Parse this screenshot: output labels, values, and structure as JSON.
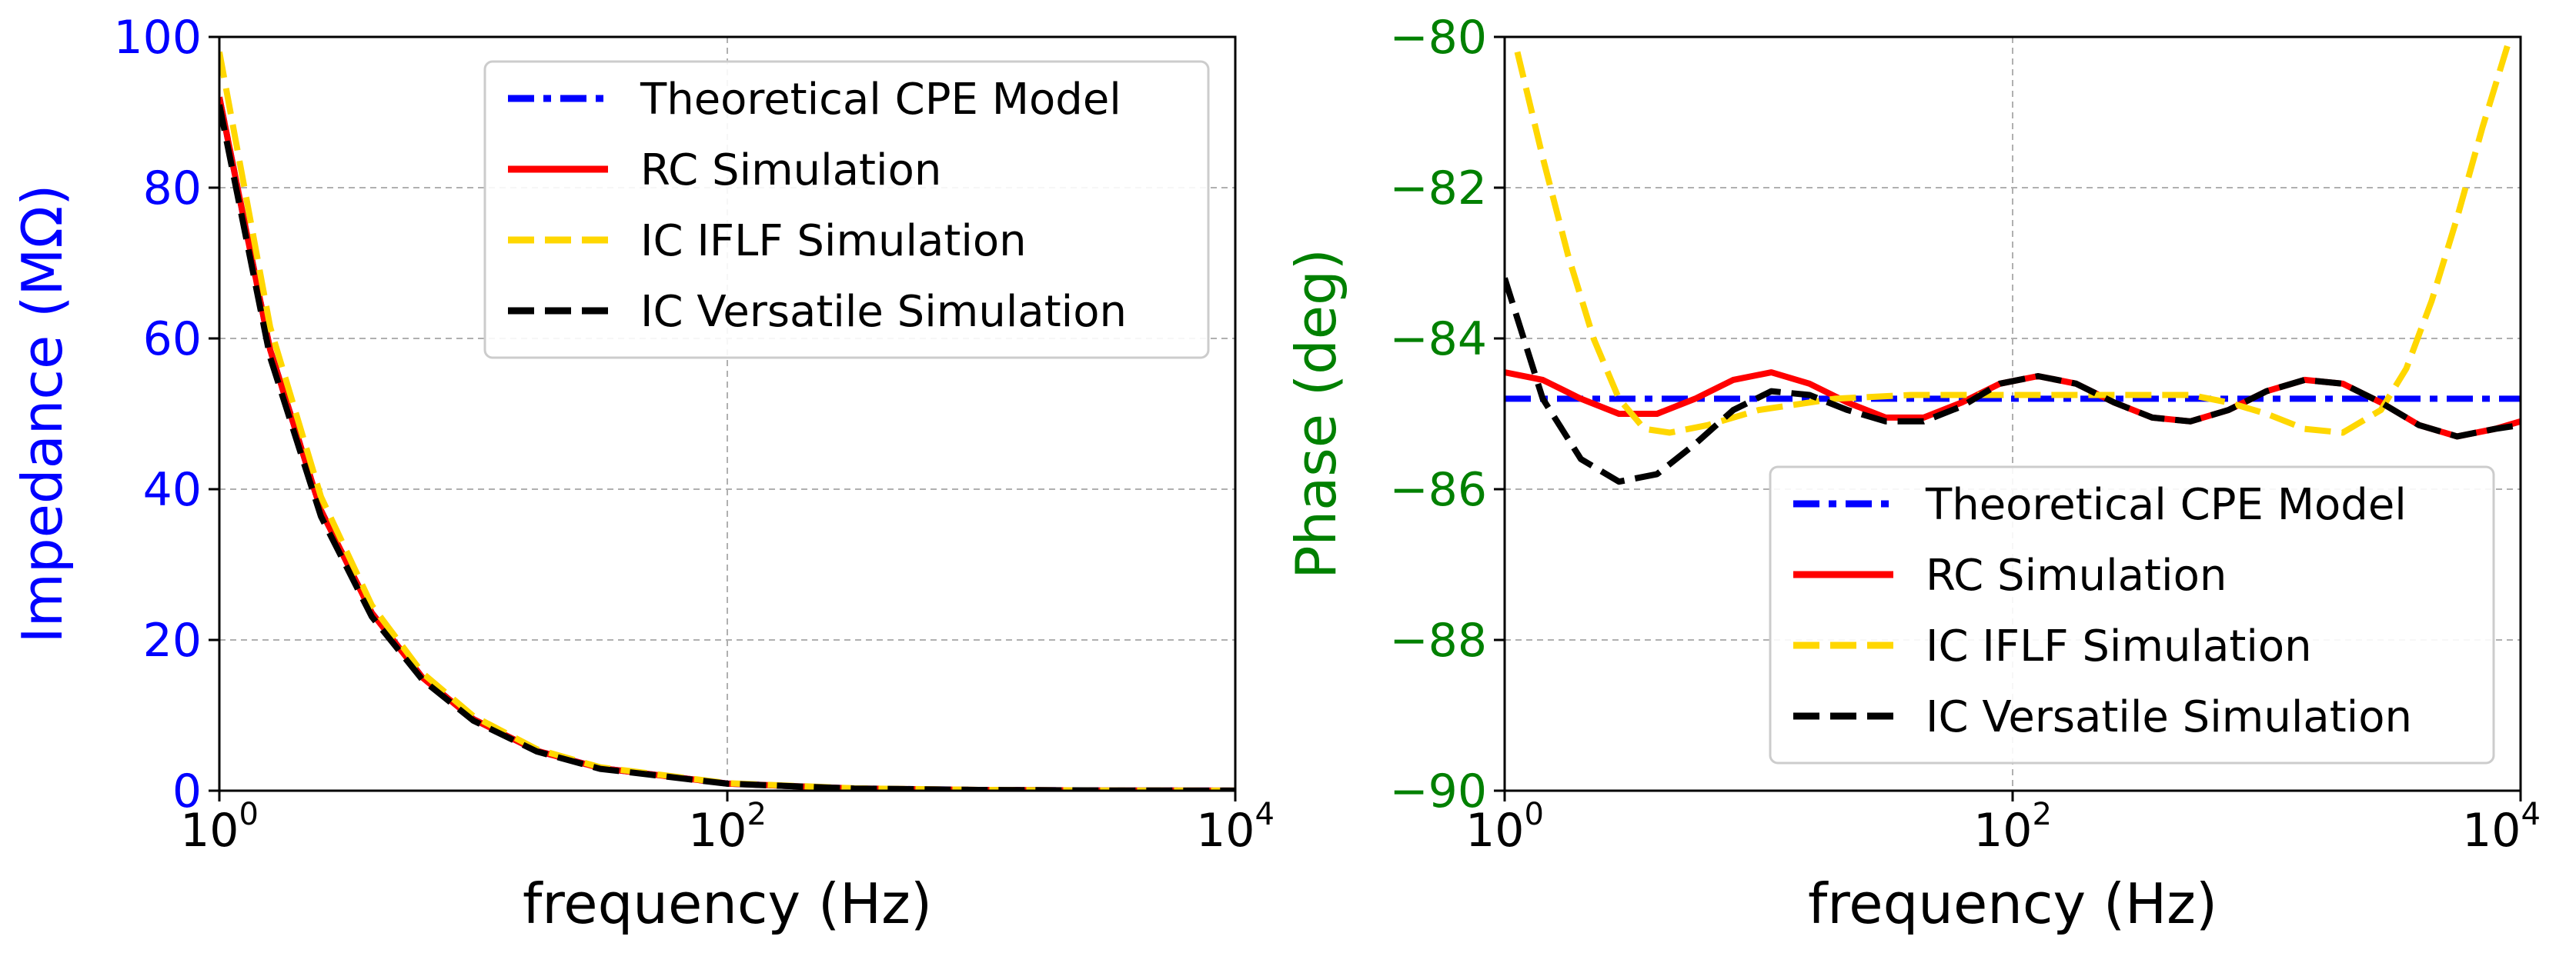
{
  "chart_data": [
    {
      "type": "line",
      "xscale": "log10",
      "xlim_log10": [
        0,
        4
      ],
      "ylim": [
        0,
        100
      ],
      "xlabel": "frequency (Hz)",
      "ylabel": "Impedance (MΩ)",
      "ylabel_color": "#0000ff",
      "x_ticks": [
        {
          "base": "10",
          "exp": "0"
        },
        {
          "base": "10",
          "exp": "2"
        },
        {
          "base": "10",
          "exp": "4"
        }
      ],
      "y_ticks": [
        "0",
        "20",
        "40",
        "60",
        "80",
        "100"
      ],
      "y_tick_values": [
        0,
        20,
        40,
        60,
        80,
        100
      ],
      "grid": true,
      "legend_loc": "upper-right",
      "series": [
        {
          "name": "Theoretical CPE Model",
          "color": "#0000ff",
          "style": "dashdot",
          "log10_x": [
            0,
            0.2,
            0.4,
            0.6,
            0.8,
            1.0,
            1.25,
            1.5,
            2.0,
            2.5,
            3.0,
            3.5,
            4.0
          ],
          "y": [
            92,
            58.5,
            37.2,
            23.6,
            15.0,
            9.5,
            5.3,
            3.0,
            0.95,
            0.3,
            0.1,
            0.03,
            0.01
          ]
        },
        {
          "name": "RC Simulation",
          "color": "#ff0000",
          "style": "solid",
          "log10_x": [
            0,
            0.2,
            0.4,
            0.6,
            0.8,
            1.0,
            1.25,
            1.5,
            2.0,
            2.5,
            3.0,
            3.5,
            4.0
          ],
          "y": [
            92,
            58.5,
            37.2,
            23.6,
            15.0,
            9.5,
            5.3,
            3.0,
            0.95,
            0.3,
            0.1,
            0.03,
            0.01
          ]
        },
        {
          "name": "IC IFLF Simulation",
          "color": "#ffd700",
          "style": "dashed",
          "log10_x": [
            0,
            0.2,
            0.4,
            0.6,
            0.8,
            1.0,
            1.25,
            1.5,
            2.0,
            2.5,
            3.0,
            3.5,
            4.0
          ],
          "y": [
            98,
            61.5,
            39.0,
            24.6,
            15.6,
            9.9,
            5.5,
            3.1,
            1.0,
            0.32,
            0.1,
            0.03,
            0.01
          ]
        },
        {
          "name": "IC Versatile Simulation",
          "color": "#000000",
          "style": "dashed",
          "log10_x": [
            0,
            0.2,
            0.4,
            0.6,
            0.8,
            1.0,
            1.25,
            1.5,
            2.0,
            2.5,
            3.0,
            3.5,
            4.0
          ],
          "y": [
            91,
            57.5,
            36.4,
            23.1,
            14.7,
            9.3,
            5.2,
            2.9,
            0.93,
            0.29,
            0.1,
            0.03,
            0.01
          ]
        }
      ]
    },
    {
      "type": "line",
      "xscale": "log10",
      "xlim_log10": [
        0,
        4
      ],
      "ylim": [
        -90,
        -80
      ],
      "xlabel": "frequency (Hz)",
      "ylabel": "Phase (deg)",
      "ylabel_color": "#008000",
      "x_ticks": [
        {
          "base": "10",
          "exp": "0"
        },
        {
          "base": "10",
          "exp": "2"
        },
        {
          "base": "10",
          "exp": "4"
        }
      ],
      "y_ticks": [
        "−90",
        "−88",
        "−86",
        "−84",
        "−82",
        "−80"
      ],
      "y_tick_values": [
        -90,
        -88,
        -86,
        -84,
        -82,
        -80
      ],
      "grid": true,
      "legend_loc": "lower-right",
      "series": [
        {
          "name": "Theoretical CPE Model",
          "color": "#0000ff",
          "style": "dashdot",
          "log10_x": [
            0,
            4.0
          ],
          "y": [
            -84.8,
            -84.8
          ]
        },
        {
          "name": "RC Simulation",
          "color": "#ff0000",
          "style": "solid",
          "log10_x": [
            0,
            0.15,
            0.3,
            0.45,
            0.6,
            0.75,
            0.9,
            1.05,
            1.2,
            1.35,
            1.5,
            1.65,
            1.8,
            1.95,
            2.1,
            2.25,
            2.4,
            2.55,
            2.7,
            2.85,
            3.0,
            3.15,
            3.3,
            3.45,
            3.6,
            3.75,
            3.9,
            4.0
          ],
          "y": [
            -84.45,
            -84.55,
            -84.8,
            -85.0,
            -85.0,
            -84.8,
            -84.55,
            -84.45,
            -84.6,
            -84.85,
            -85.05,
            -85.05,
            -84.85,
            -84.6,
            -84.5,
            -84.6,
            -84.85,
            -85.05,
            -85.1,
            -84.95,
            -84.7,
            -84.55,
            -84.6,
            -84.85,
            -85.15,
            -85.3,
            -85.2,
            -85.1
          ]
        },
        {
          "name": "IC IFLF Simulation",
          "color": "#ffd700",
          "style": "dashed",
          "log10_x": [
            0.05,
            0.15,
            0.25,
            0.35,
            0.45,
            0.55,
            0.65,
            0.8,
            1.0,
            1.3,
            1.6,
            2.0,
            2.4,
            2.7,
            2.85,
            3.0,
            3.15,
            3.3,
            3.45,
            3.55,
            3.65,
            3.75,
            3.85,
            3.95
          ],
          "y": [
            -80.2,
            -81.6,
            -82.9,
            -84.0,
            -84.8,
            -85.2,
            -85.25,
            -85.15,
            -84.95,
            -84.8,
            -84.75,
            -84.75,
            -84.75,
            -84.75,
            -84.85,
            -85.0,
            -85.2,
            -85.25,
            -84.95,
            -84.4,
            -83.5,
            -82.4,
            -81.2,
            -80.1
          ]
        },
        {
          "name": "IC Versatile Simulation",
          "color": "#000000",
          "style": "dashed",
          "log10_x": [
            0,
            0.15,
            0.3,
            0.45,
            0.6,
            0.75,
            0.9,
            1.05,
            1.2,
            1.35,
            1.5,
            1.65,
            1.8,
            1.95,
            2.1,
            2.25,
            2.4,
            2.55,
            2.7,
            2.85,
            3.0,
            3.15,
            3.3,
            3.45,
            3.6,
            3.75,
            3.9,
            4.0
          ],
          "y": [
            -83.2,
            -84.8,
            -85.6,
            -85.9,
            -85.8,
            -85.4,
            -84.95,
            -84.7,
            -84.75,
            -84.95,
            -85.1,
            -85.1,
            -84.9,
            -84.6,
            -84.5,
            -84.6,
            -84.85,
            -85.05,
            -85.1,
            -84.95,
            -84.7,
            -84.55,
            -84.6,
            -84.85,
            -85.15,
            -85.3,
            -85.2,
            -85.15
          ]
        }
      ]
    }
  ]
}
